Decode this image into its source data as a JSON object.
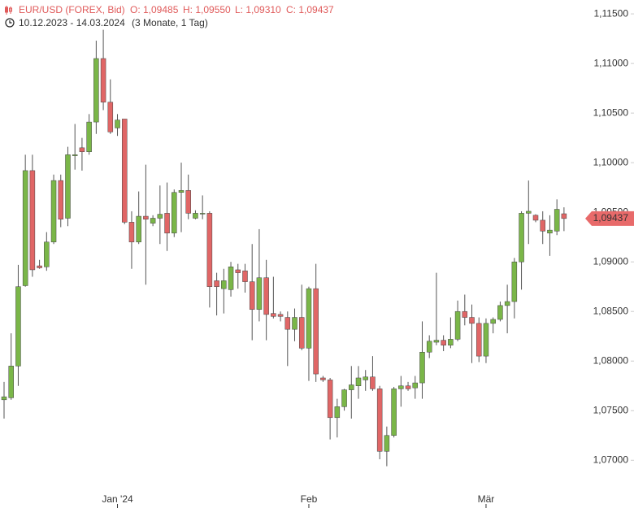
{
  "chart_data": {
    "type": "candlestick",
    "title": "EUR/USD (FOREX, Bid)",
    "ohlc_labels": [
      "O: 1,09485",
      "H: 1,09550",
      "L: 1,09310",
      "C: 1,09437"
    ],
    "date_range": "10.12.2023 - 14.03.2024",
    "period": "(3 Monate, 1 Tag)",
    "up_color": "#7ab648",
    "down_color": "#e06666",
    "categories": [
      null,
      null,
      null,
      null,
      null,
      null,
      null,
      null,
      null,
      null,
      null,
      null,
      null,
      null,
      null,
      null,
      "Jan '24",
      null,
      null,
      null,
      null,
      null,
      null,
      null,
      null,
      null,
      null,
      null,
      null,
      null,
      null,
      null,
      null,
      null,
      null,
      null,
      null,
      null,
      null,
      null,
      null,
      null,
      null,
      "Feb",
      null,
      null,
      null,
      null,
      null,
      null,
      null,
      null,
      null,
      null,
      null,
      null,
      null,
      null,
      null,
      null,
      null,
      null,
      null,
      null,
      null,
      null,
      null,
      null,
      "Mär",
      null,
      null,
      null,
      null,
      null,
      null,
      null,
      null,
      null,
      null,
      null
    ],
    "open": [
      1.0761,
      1.0763,
      1.0795,
      1.0876,
      1.0992,
      1.0896,
      1.0895,
      1.092,
      1.0982,
      1.0944,
      1.1007,
      1.1015,
      1.1011,
      1.1041,
      1.1105,
      1.1061,
      1.1035,
      1.1044,
      1.094,
      1.092,
      1.0946,
      1.0939,
      1.0944,
      1.0949,
      1.0929,
      1.097,
      1.0972,
      1.0944,
      1.0949,
      1.0949,
      1.0881,
      1.0873,
      1.0872,
      1.0892,
      1.0891,
      1.088,
      1.0852,
      1.0884,
      1.0848,
      1.0847,
      1.0844,
      1.0832,
      1.0844,
      1.0813,
      1.0873,
      1.0783,
      1.0781,
      1.0743,
      1.0754,
      1.0771,
      1.0775,
      1.0781,
      1.0784,
      1.0772,
      1.0709,
      1.0725,
      1.0772,
      1.0775,
      1.0773,
      1.0778,
      1.0809,
      1.0819,
      1.0821,
      1.0816,
      1.0822,
      1.085,
      1.0844,
      1.0838,
      1.0805,
      1.0838,
      1.0842,
      1.0856,
      1.086,
      1.09,
      1.0949,
      1.0947,
      1.0942,
      1.0929,
      1.0931,
      1.09485
    ],
    "high": [
      1.0779,
      1.0828,
      1.0897,
      1.1008,
      1.1008,
      1.0902,
      1.093,
      1.0988,
      1.0988,
      1.1016,
      1.1039,
      1.1025,
      1.1049,
      1.1123,
      1.1134,
      1.1084,
      1.1049,
      1.1044,
      1.0951,
      1.0971,
      1.0998,
      1.0947,
      1.0977,
      1.098,
      1.0973,
      1.1,
      1.0988,
      1.0952,
      1.0967,
      1.0951,
      1.0889,
      1.0893,
      1.09,
      1.0898,
      1.0898,
      1.0918,
      1.0933,
      1.0902,
      1.0885,
      1.085,
      1.085,
      1.0853,
      1.0877,
      1.0875,
      1.0898,
      1.0785,
      1.0783,
      1.0762,
      1.0772,
      1.0795,
      1.0795,
      1.0791,
      1.0805,
      1.0775,
      1.0734,
      1.0774,
      1.0785,
      1.0779,
      1.0785,
      1.084,
      1.0826,
      1.0889,
      1.0826,
      1.0844,
      1.0861,
      1.0867,
      1.0857,
      1.0844,
      1.0843,
      1.0844,
      1.086,
      1.0877,
      1.0904,
      1.0951,
      1.0982,
      1.0948,
      1.0951,
      1.0947,
      1.0963,
      1.0955
    ],
    "low": [
      1.0742,
      1.0761,
      1.0775,
      1.0875,
      1.0885,
      1.0893,
      1.0891,
      1.0918,
      1.0935,
      1.0936,
      1.0993,
      1.0992,
      1.1008,
      1.1029,
      1.1053,
      1.1029,
      1.1027,
      1.0938,
      1.0893,
      1.0918,
      1.0877,
      1.0936,
      1.0918,
      1.0911,
      1.0925,
      1.093,
      1.0943,
      1.0943,
      1.0943,
      1.0854,
      1.0846,
      1.0848,
      1.0865,
      1.0873,
      1.0869,
      1.0821,
      1.084,
      1.0821,
      1.0843,
      1.084,
      1.0795,
      1.082,
      1.0811,
      1.078,
      1.0779,
      1.0779,
      1.0721,
      1.0723,
      1.075,
      1.0742,
      1.0762,
      1.077,
      1.077,
      1.0701,
      1.0694,
      1.0723,
      1.0754,
      1.077,
      1.0762,
      1.0762,
      1.0803,
      1.0816,
      1.081,
      1.0813,
      1.082,
      1.0836,
      1.0798,
      1.0799,
      1.0798,
      1.0828,
      1.084,
      1.0828,
      1.0843,
      1.0872,
      1.0918,
      1.094,
      1.0918,
      1.0906,
      1.0927,
      1.0931
    ],
    "close": [
      1.0764,
      1.0795,
      1.0875,
      1.0992,
      1.0892,
      1.0894,
      1.092,
      1.0982,
      1.0943,
      1.1008,
      1.1008,
      1.1011,
      1.1041,
      1.1105,
      1.1061,
      1.1031,
      1.1043,
      1.094,
      1.092,
      1.0946,
      1.0943,
      1.0944,
      1.0948,
      1.0929,
      1.097,
      1.0972,
      1.0949,
      1.0949,
      1.0949,
      1.0875,
      1.0875,
      1.0881,
      1.0895,
      1.0889,
      1.088,
      1.0852,
      1.0884,
      1.0847,
      1.0845,
      1.0845,
      1.0832,
      1.0844,
      1.0813,
      1.0873,
      1.0787,
      1.0781,
      1.0743,
      1.0754,
      1.0771,
      1.0776,
      1.0783,
      1.0784,
      1.0772,
      1.0709,
      1.0725,
      1.0772,
      1.0775,
      1.0772,
      1.0778,
      1.0809,
      1.082,
      1.0821,
      1.0816,
      1.0822,
      1.085,
      1.0844,
      1.0838,
      1.0805,
      1.0838,
      1.0842,
      1.0856,
      1.086,
      1.09,
      1.0949,
      1.0951,
      1.0942,
      1.0931,
      1.0932,
      1.0953,
      1.09437
    ],
    "last_price": {
      "value": 1.09437,
      "label": "1,09437"
    },
    "ylim": [
      1.0674,
      1.1164
    ],
    "yticks": [
      {
        "value": 1.07,
        "label": "1,07000"
      },
      {
        "value": 1.075,
        "label": "1,07500"
      },
      {
        "value": 1.08,
        "label": "1,08000"
      },
      {
        "value": 1.085,
        "label": "1,08500"
      },
      {
        "value": 1.09,
        "label": "1,09000"
      },
      {
        "value": 1.095,
        "label": "1,09500"
      },
      {
        "value": 1.1,
        "label": "1,10000"
      },
      {
        "value": 1.105,
        "label": "1,10500"
      },
      {
        "value": 1.11,
        "label": "1,11000"
      },
      {
        "value": 1.115,
        "label": "1,11500"
      }
    ]
  }
}
